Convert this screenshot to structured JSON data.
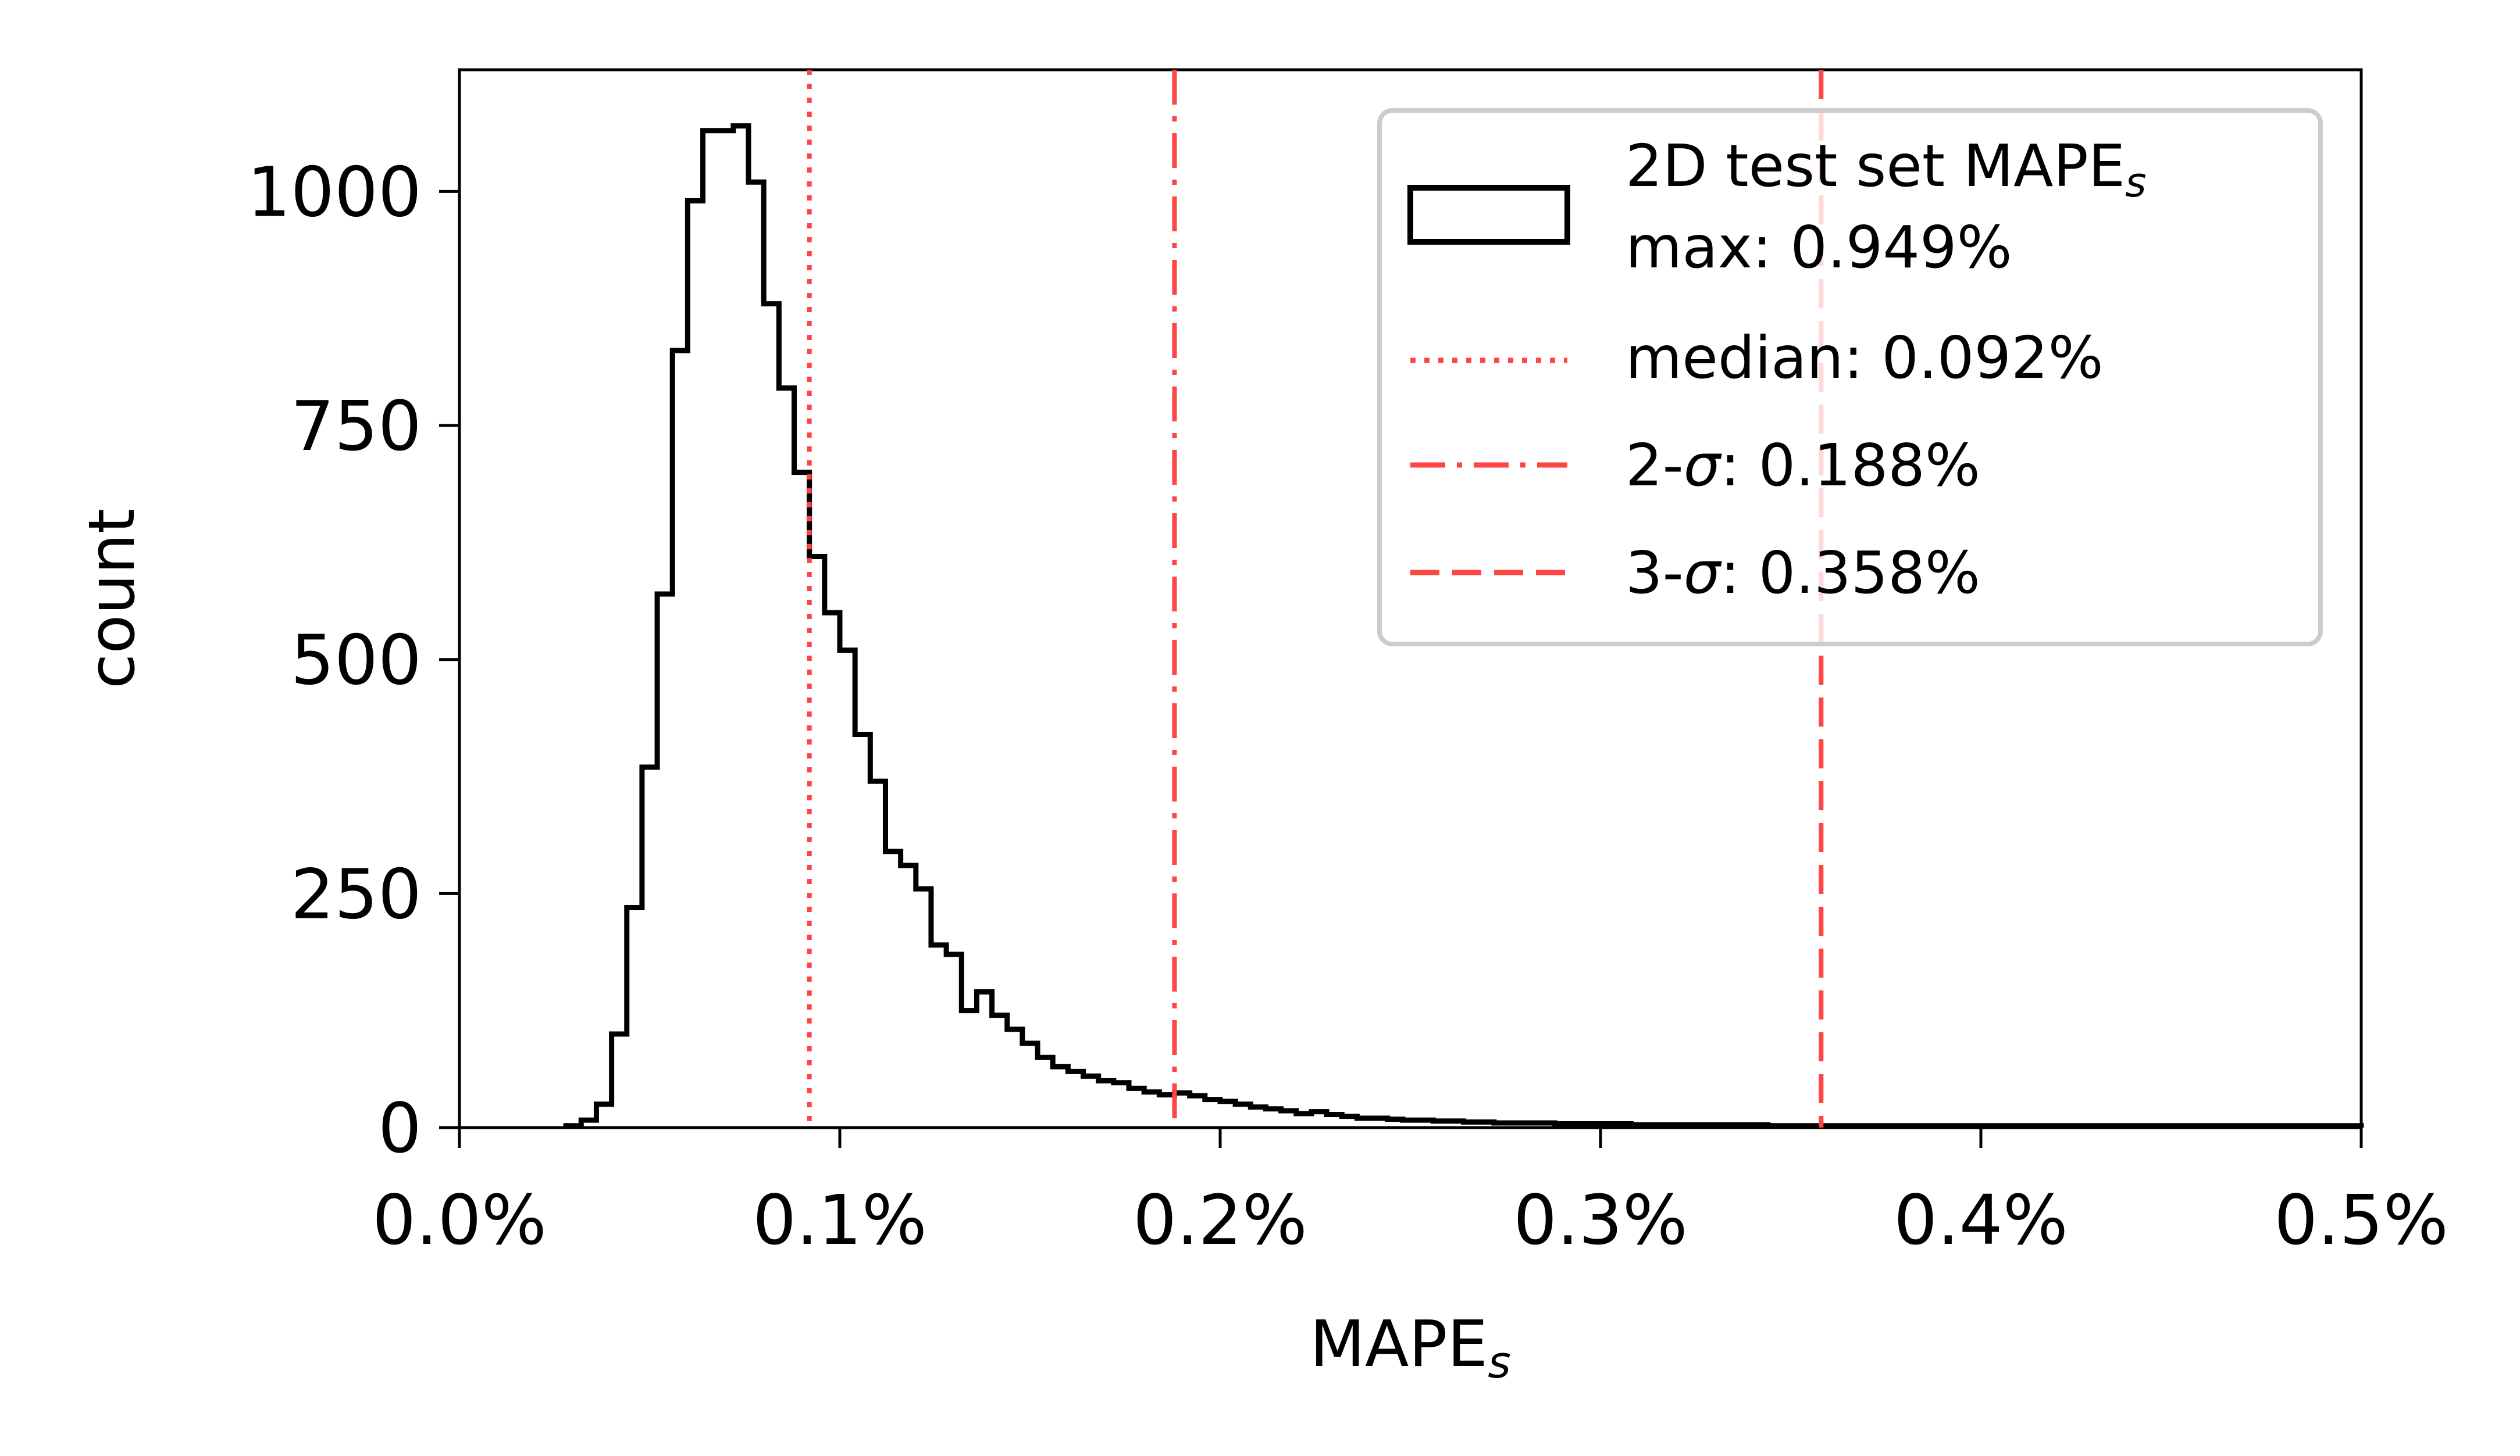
{
  "chart_data": {
    "type": "histogram",
    "title": "",
    "xlabel": "MAPE",
    "xlabel_subscript": "s",
    "ylabel": "count",
    "xlim": [
      0.0,
      0.5
    ],
    "ylim": [
      0,
      1130
    ],
    "x_unit": "%",
    "grid": false,
    "legend_position": "upper right",
    "x_ticks": [
      {
        "value": 0.0,
        "label": "0.0%"
      },
      {
        "value": 0.1,
        "label": "0.1%"
      },
      {
        "value": 0.2,
        "label": "0.2%"
      },
      {
        "value": 0.3,
        "label": "0.3%"
      },
      {
        "value": 0.4,
        "label": "0.4%"
      },
      {
        "value": 0.5,
        "label": "0.5%"
      }
    ],
    "y_ticks": [
      {
        "value": 0,
        "label": "0"
      },
      {
        "value": 250,
        "label": "250"
      },
      {
        "value": 500,
        "label": "500"
      },
      {
        "value": 750,
        "label": "750"
      },
      {
        "value": 1000,
        "label": "1000"
      }
    ],
    "histogram": {
      "bin_width": 0.004,
      "bin_start": 0.028,
      "color": "#000000",
      "counts": [
        2,
        8,
        25,
        100,
        235,
        385,
        570,
        830,
        990,
        1065,
        1065,
        1070,
        1010,
        880,
        790,
        700,
        610,
        550,
        510,
        420,
        370,
        295,
        280,
        255,
        195,
        185,
        125,
        145,
        120,
        105,
        90,
        75,
        65,
        60,
        55,
        50,
        48,
        42,
        38,
        35,
        37,
        34,
        30,
        28,
        25,
        22,
        20,
        18,
        15,
        17,
        14,
        12,
        10,
        10,
        9,
        8,
        8,
        7,
        7,
        6,
        6,
        5,
        5,
        5,
        5,
        4,
        4,
        4,
        4,
        4,
        3,
        3,
        3,
        3,
        3,
        3,
        3,
        3,
        3,
        2,
        2,
        2,
        2,
        2,
        2,
        2,
        2,
        2,
        2,
        2,
        2,
        2,
        2,
        2,
        2,
        2,
        2,
        2,
        2,
        2,
        2,
        2,
        2,
        2,
        2,
        2,
        2,
        2,
        2,
        2,
        2,
        2,
        2,
        2,
        2,
        2,
        2,
        2
      ]
    },
    "vlines": [
      {
        "name": "median",
        "value": 0.092,
        "style": "dotted",
        "color": "#ff4444"
      },
      {
        "name": "2-sigma",
        "value": 0.188,
        "style": "dashdot",
        "color": "#ff4444"
      },
      {
        "name": "3-sigma",
        "value": 0.358,
        "style": "dashed",
        "color": "#ff4444"
      }
    ],
    "legend": [
      {
        "symbol": "histogram",
        "label_line1": "2D test set MAPE",
        "label_line1_sub": "s",
        "label_line2": "max: 0.949%"
      },
      {
        "symbol": "dotted",
        "label": "median: 0.092%"
      },
      {
        "symbol": "dashdot",
        "label_prefix": "2-",
        "label_sigma": "σ",
        "label_suffix": ": 0.188%"
      },
      {
        "symbol": "dashed",
        "label_prefix": "3-",
        "label_sigma": "σ",
        "label_suffix": ": 0.358%"
      }
    ]
  }
}
